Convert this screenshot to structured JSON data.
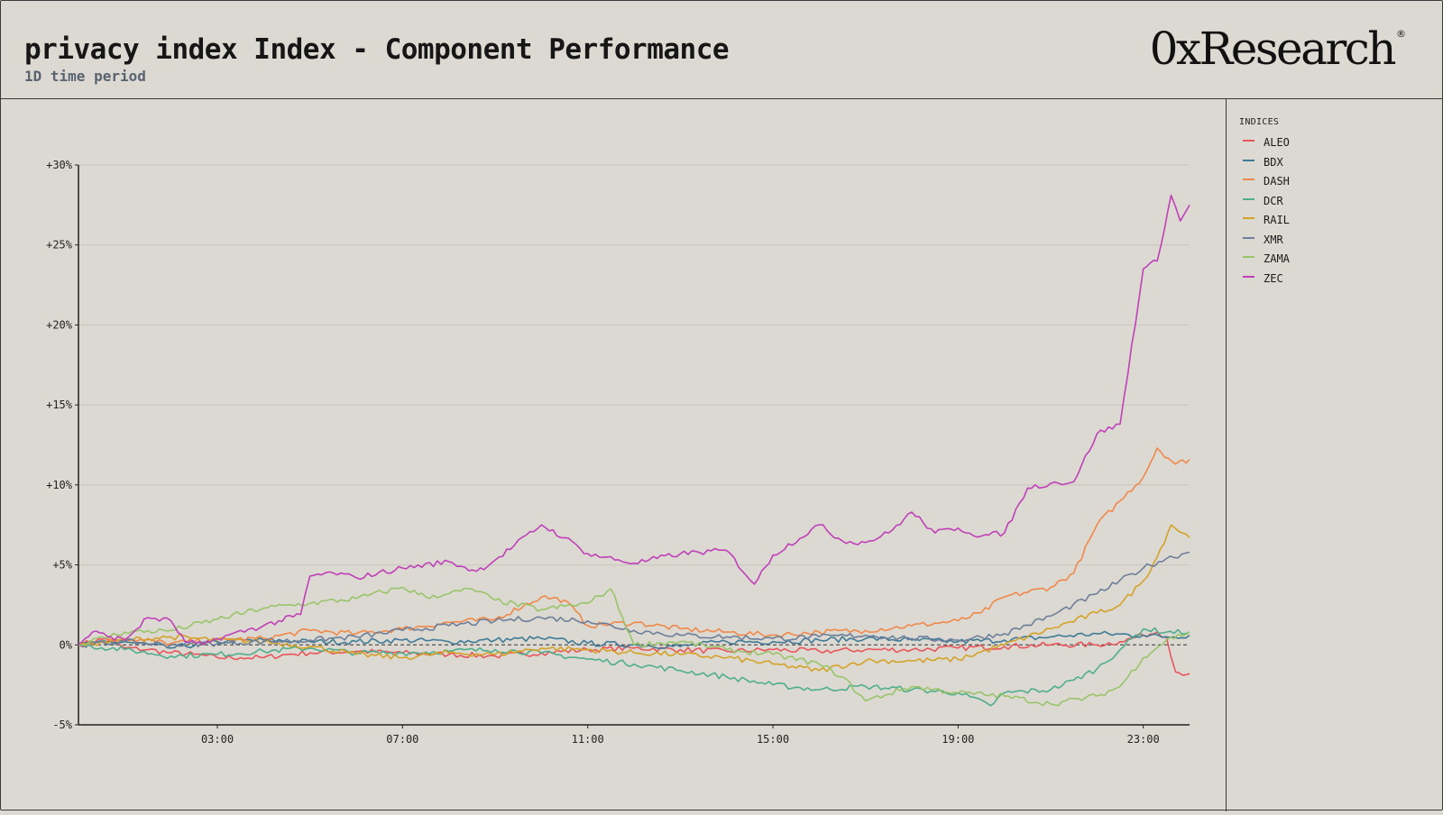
{
  "header": {
    "title": "privacy index Index - Component Performance",
    "subtitle": "1D time period",
    "brand": "0xResearch",
    "brand_mark": "®"
  },
  "legend": {
    "title": "INDICES"
  },
  "chart_data": {
    "type": "line",
    "title": "privacy index Index - Component Performance",
    "subtitle": "1D time period",
    "x_axis": {
      "unit": "hours",
      "ticks": [
        3,
        7,
        11,
        15,
        19,
        23
      ],
      "tick_labels": [
        "03:00",
        "07:00",
        "11:00",
        "15:00",
        "19:00",
        "23:00"
      ],
      "range": [
        0,
        24
      ]
    },
    "y_axis": {
      "unit": "percent",
      "range": [
        -5,
        30
      ],
      "ticks": [
        -5,
        0,
        5,
        10,
        15,
        20,
        25,
        30
      ],
      "tick_labels": [
        "-5%",
        "0%",
        "+5%",
        "+10%",
        "+15%",
        "+20%",
        "+25%",
        "+30%"
      ]
    },
    "grid": true,
    "zero_line": "dashed",
    "legend_position": "right-panel",
    "series": [
      {
        "name": "ALEO",
        "color": "#e8565c",
        "points": [
          [
            0,
            0
          ],
          [
            0.6,
            0.4
          ],
          [
            1,
            -0.2
          ],
          [
            1.5,
            -0.3
          ],
          [
            2,
            -0.5
          ],
          [
            2.5,
            -0.6
          ],
          [
            3,
            -0.8
          ],
          [
            3.5,
            -0.8
          ],
          [
            4,
            -0.8
          ],
          [
            4.5,
            -0.6
          ],
          [
            5,
            -0.5
          ],
          [
            6,
            -0.4
          ],
          [
            7,
            -0.5
          ],
          [
            8,
            -0.6
          ],
          [
            9,
            -0.7
          ],
          [
            10,
            -0.5
          ],
          [
            11,
            -0.3
          ],
          [
            12,
            -0.2
          ],
          [
            13,
            -0.3
          ],
          [
            14,
            -0.4
          ],
          [
            15,
            -0.3
          ],
          [
            16,
            -0.4
          ],
          [
            17,
            -0.3
          ],
          [
            18,
            -0.3
          ],
          [
            19,
            -0.2
          ],
          [
            20,
            -0.1
          ],
          [
            21,
            0
          ],
          [
            22,
            0
          ],
          [
            22.5,
            0.2
          ],
          [
            23,
            0.6
          ],
          [
            23.3,
            0.8
          ],
          [
            23.5,
            0.5
          ],
          [
            23.7,
            -1.7
          ],
          [
            24,
            -1.8
          ]
        ]
      },
      {
        "name": "BDX",
        "color": "#3f7a96",
        "points": [
          [
            0,
            0
          ],
          [
            1,
            0.2
          ],
          [
            2,
            -0.2
          ],
          [
            3,
            0.2
          ],
          [
            4,
            0.3
          ],
          [
            5,
            0.2
          ],
          [
            6,
            0.2
          ],
          [
            7,
            0.3
          ],
          [
            8,
            0.2
          ],
          [
            9,
            0.3
          ],
          [
            10,
            0.4
          ],
          [
            11,
            0.1
          ],
          [
            12,
            0
          ],
          [
            13,
            -0.1
          ],
          [
            14,
            0.2
          ],
          [
            15,
            0.2
          ],
          [
            16,
            0.3
          ],
          [
            17,
            0.4
          ],
          [
            18,
            0.3
          ],
          [
            19,
            0.2
          ],
          [
            20,
            0.3
          ],
          [
            21,
            0.5
          ],
          [
            22,
            0.7
          ],
          [
            23,
            0.6
          ],
          [
            23.5,
            0.5
          ],
          [
            24,
            0.6
          ]
        ]
      },
      {
        "name": "DASH",
        "color": "#f0884a",
        "points": [
          [
            0,
            0
          ],
          [
            1,
            0.4
          ],
          [
            2,
            0.1
          ],
          [
            3,
            0.3
          ],
          [
            4,
            0.4
          ],
          [
            5,
            0.9
          ],
          [
            6,
            0.7
          ],
          [
            7,
            1.0
          ],
          [
            8,
            1.4
          ],
          [
            9,
            1.6
          ],
          [
            10,
            3.0
          ],
          [
            10.5,
            2.8
          ],
          [
            11,
            1.2
          ],
          [
            12,
            1.4
          ],
          [
            13,
            1.0
          ],
          [
            14,
            0.8
          ],
          [
            15,
            0.6
          ],
          [
            16,
            0.8
          ],
          [
            17,
            0.9
          ],
          [
            18,
            1.2
          ],
          [
            19,
            1.5
          ],
          [
            19.5,
            2.0
          ],
          [
            20,
            3.0
          ],
          [
            21,
            3.6
          ],
          [
            21.5,
            4.5
          ],
          [
            22,
            7.5
          ],
          [
            22.5,
            9.0
          ],
          [
            23,
            10.5
          ],
          [
            23.3,
            12.3
          ],
          [
            23.7,
            11.3
          ],
          [
            24,
            11.6
          ]
        ]
      },
      {
        "name": "DCR",
        "color": "#4fae8c",
        "points": [
          [
            0,
            0
          ],
          [
            1,
            -0.3
          ],
          [
            2,
            -0.7
          ],
          [
            3,
            -0.6
          ],
          [
            4,
            -0.4
          ],
          [
            5,
            -0.2
          ],
          [
            6,
            -0.5
          ],
          [
            7,
            -0.5
          ],
          [
            8,
            -0.4
          ],
          [
            9,
            -0.3
          ],
          [
            10,
            -0.5
          ],
          [
            11,
            -0.9
          ],
          [
            12,
            -1.2
          ],
          [
            13,
            -1.6
          ],
          [
            14,
            -2.0
          ],
          [
            15,
            -2.5
          ],
          [
            16,
            -2.8
          ],
          [
            17,
            -2.6
          ],
          [
            18,
            -2.8
          ],
          [
            19,
            -3.0
          ],
          [
            19.7,
            -3.8
          ],
          [
            20,
            -3.0
          ],
          [
            21,
            -2.8
          ],
          [
            21.5,
            -2.2
          ],
          [
            22,
            -1.5
          ],
          [
            22.5,
            -0.3
          ],
          [
            23,
            1.0
          ],
          [
            23.5,
            0.8
          ],
          [
            24,
            0.8
          ]
        ]
      },
      {
        "name": "RAIL",
        "color": "#d4a229",
        "points": [
          [
            0,
            0
          ],
          [
            1,
            0.3
          ],
          [
            2,
            0.5
          ],
          [
            3,
            0.3
          ],
          [
            4,
            0.2
          ],
          [
            5,
            -0.1
          ],
          [
            6,
            -0.6
          ],
          [
            7,
            -0.8
          ],
          [
            8,
            -0.5
          ],
          [
            9,
            -0.6
          ],
          [
            10,
            -0.2
          ],
          [
            11,
            -0.3
          ],
          [
            12,
            -0.5
          ],
          [
            13,
            -0.6
          ],
          [
            14,
            -0.8
          ],
          [
            15,
            -1.2
          ],
          [
            16,
            -1.6
          ],
          [
            17,
            -1.0
          ],
          [
            18,
            -1.0
          ],
          [
            19,
            -0.9
          ],
          [
            20,
            0
          ],
          [
            21,
            1.0
          ],
          [
            22,
            2.0
          ],
          [
            22.5,
            2.5
          ],
          [
            23,
            4.0
          ],
          [
            23.3,
            5.5
          ],
          [
            23.6,
            7.5
          ],
          [
            24,
            6.7
          ]
        ]
      },
      {
        "name": "XMR",
        "color": "#6d7f99",
        "points": [
          [
            0,
            0
          ],
          [
            1,
            0.2
          ],
          [
            2,
            0
          ],
          [
            3,
            0.1
          ],
          [
            4,
            0.2
          ],
          [
            5,
            0.3
          ],
          [
            6,
            0.5
          ],
          [
            7,
            0.9
          ],
          [
            8,
            1.2
          ],
          [
            9,
            1.5
          ],
          [
            10,
            1.7
          ],
          [
            11,
            1.5
          ],
          [
            12,
            0.9
          ],
          [
            13,
            0.6
          ],
          [
            14,
            0.5
          ],
          [
            15,
            0.4
          ],
          [
            16,
            0.5
          ],
          [
            17,
            0.6
          ],
          [
            18,
            0.4
          ],
          [
            19,
            0.3
          ],
          [
            20,
            0.7
          ],
          [
            21,
            1.8
          ],
          [
            22,
            3.2
          ],
          [
            23,
            4.8
          ],
          [
            23.5,
            5.4
          ],
          [
            24,
            5.8
          ]
        ]
      },
      {
        "name": "ZAMA",
        "color": "#9ac46a",
        "points": [
          [
            0,
            0
          ],
          [
            1,
            0.8
          ],
          [
            2,
            0.9
          ],
          [
            3,
            1.6
          ],
          [
            4,
            2.3
          ],
          [
            5,
            2.6
          ],
          [
            6,
            2.9
          ],
          [
            7,
            3.6
          ],
          [
            7.5,
            3.0
          ],
          [
            8,
            3.2
          ],
          [
            8.5,
            3.5
          ],
          [
            9,
            2.8
          ],
          [
            10,
            2.2
          ],
          [
            11,
            2.6
          ],
          [
            11.5,
            3.5
          ],
          [
            12,
            0
          ],
          [
            13,
            0.2
          ],
          [
            14,
            -0.3
          ],
          [
            15,
            -0.6
          ],
          [
            16,
            -1.2
          ],
          [
            16.5,
            -2.0
          ],
          [
            17,
            -3.5
          ],
          [
            18,
            -2.6
          ],
          [
            19,
            -3.0
          ],
          [
            20,
            -3.2
          ],
          [
            21,
            -3.7
          ],
          [
            22,
            -3.2
          ],
          [
            22.5,
            -2.6
          ],
          [
            23,
            -0.8
          ],
          [
            23.5,
            0.3
          ],
          [
            24,
            0.8
          ]
        ]
      },
      {
        "name": "ZEC",
        "color": "#c040b8",
        "points": [
          [
            0,
            0
          ],
          [
            0.3,
            0.8
          ],
          [
            0.7,
            0.5
          ],
          [
            1,
            0.3
          ],
          [
            1.5,
            1.7
          ],
          [
            2,
            1.5
          ],
          [
            2.3,
            0.2
          ],
          [
            2.7,
            0
          ],
          [
            3,
            0.4
          ],
          [
            4,
            1.2
          ],
          [
            4.8,
            1.9
          ],
          [
            5,
            4.3
          ],
          [
            5.5,
            4.5
          ],
          [
            6,
            4.2
          ],
          [
            7,
            4.8
          ],
          [
            8,
            5.2
          ],
          [
            8.6,
            4.6
          ],
          [
            9,
            5.3
          ],
          [
            10,
            7.5
          ],
          [
            10.5,
            6.7
          ],
          [
            11,
            5.7
          ],
          [
            12,
            5.1
          ],
          [
            13,
            5.7
          ],
          [
            14,
            5.9
          ],
          [
            14.6,
            3.8
          ],
          [
            15,
            5.6
          ],
          [
            16,
            7.5
          ],
          [
            16.5,
            6.5
          ],
          [
            17,
            6.4
          ],
          [
            17.5,
            7.0
          ],
          [
            18,
            8.3
          ],
          [
            18.5,
            7.0
          ],
          [
            19,
            7.3
          ],
          [
            19.5,
            6.8
          ],
          [
            20,
            7.0
          ],
          [
            20.5,
            9.8
          ],
          [
            21,
            10.1
          ],
          [
            21.5,
            10.2
          ],
          [
            22,
            13.2
          ],
          [
            22.5,
            13.8
          ],
          [
            23,
            23.5
          ],
          [
            23.3,
            24.0
          ],
          [
            23.6,
            28.1
          ],
          [
            23.8,
            26.5
          ],
          [
            24,
            27.5
          ]
        ]
      }
    ]
  }
}
